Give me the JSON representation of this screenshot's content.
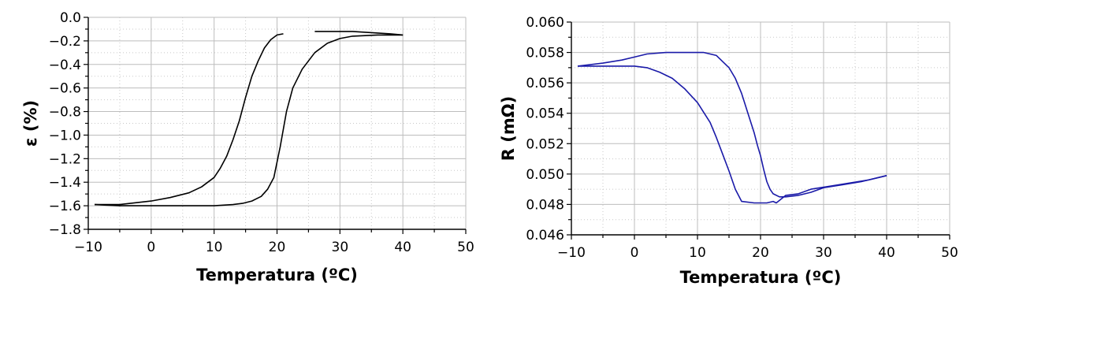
{
  "chart_data": [
    {
      "type": "line",
      "title": "",
      "xlabel": "Temperatura (ºC)",
      "ylabel": "ε (%)",
      "xlim": [
        -10,
        50
      ],
      "ylim": [
        -1.8,
        0.0
      ],
      "xticks": [
        -10,
        0,
        10,
        20,
        30,
        40,
        50
      ],
      "xtick_labels": [
        "−10",
        "0",
        "10",
        "20",
        "30",
        "40",
        "50"
      ],
      "yticks": [
        0.0,
        -0.2,
        -0.4,
        -0.6,
        -0.8,
        -1.0,
        -1.2,
        -1.4,
        -1.6,
        -1.8
      ],
      "ytick_labels": [
        "0.0",
        "−0.2",
        "−0.4",
        "−0.6",
        "−0.8",
        "−1.0",
        "−1.2",
        "−1.4",
        "−1.6",
        "−1.8"
      ],
      "grid": true,
      "color": "#000000",
      "series": [
        {
          "x": [
            -9,
            -5,
            0,
            5,
            10,
            13,
            14.5,
            16,
            17.5,
            18.5,
            19.5,
            20.5,
            21.5,
            22.5,
            24,
            26,
            28,
            30,
            32,
            36,
            40
          ],
          "y": [
            -1.59,
            -1.6,
            -1.6,
            -1.6,
            -1.6,
            -1.59,
            -1.58,
            -1.56,
            -1.52,
            -1.46,
            -1.36,
            -1.1,
            -0.8,
            -0.6,
            -0.44,
            -0.3,
            -0.22,
            -0.18,
            -0.16,
            -0.15,
            -0.15
          ]
        },
        {
          "x": [
            40,
            38,
            35,
            32,
            29,
            26
          ],
          "y": [
            -0.15,
            -0.14,
            -0.13,
            -0.12,
            -0.12,
            -0.12
          ]
        },
        {
          "x": [
            -9,
            -5,
            0,
            3,
            6,
            8,
            10,
            11,
            12,
            13,
            14,
            15,
            16,
            17,
            18,
            19,
            20,
            21
          ],
          "y": [
            -1.59,
            -1.59,
            -1.56,
            -1.53,
            -1.49,
            -1.44,
            -1.36,
            -1.28,
            -1.18,
            -1.04,
            -0.88,
            -0.68,
            -0.5,
            -0.37,
            -0.26,
            -0.19,
            -0.15,
            -0.14
          ]
        }
      ]
    },
    {
      "type": "line",
      "title": "",
      "xlabel": "Temperatura (ºC)",
      "ylabel": "R (mΩ)",
      "xlim": [
        -10,
        50
      ],
      "ylim": [
        0.046,
        0.06
      ],
      "xticks": [
        -10,
        0,
        10,
        20,
        30,
        40,
        50
      ],
      "xtick_labels": [
        "−10",
        "0",
        "10",
        "20",
        "30",
        "40",
        "50"
      ],
      "yticks": [
        0.046,
        0.048,
        0.05,
        0.052,
        0.054,
        0.056,
        0.058,
        0.06
      ],
      "ytick_labels": [
        "0.046",
        "0.048",
        "0.050",
        "0.052",
        "0.054",
        "0.056",
        "0.058",
        "0.060"
      ],
      "grid": true,
      "color": "#1a1aa8",
      "series": [
        {
          "x": [
            -9,
            -5,
            -2,
            0,
            2,
            5,
            8,
            11,
            13,
            15,
            16,
            17,
            18,
            19,
            19.5,
            20,
            20.5,
            21,
            21.5,
            22,
            23,
            24,
            26,
            28,
            30,
            33,
            36,
            38,
            40
          ],
          "y": [
            0.0571,
            0.0573,
            0.0575,
            0.0577,
            0.0579,
            0.058,
            0.058,
            0.058,
            0.0578,
            0.057,
            0.0563,
            0.0553,
            0.054,
            0.0527,
            0.0519,
            0.0512,
            0.0503,
            0.0495,
            0.049,
            0.0487,
            0.0485,
            0.0485,
            0.0486,
            0.0488,
            0.0491,
            0.0493,
            0.0495,
            0.0497,
            0.0499
          ]
        },
        {
          "x": [
            40,
            37,
            34,
            31,
            28,
            26,
            24,
            22.5,
            22,
            21,
            19,
            17,
            16,
            15,
            14,
            13,
            12,
            10,
            8,
            6,
            4,
            2,
            0,
            -3,
            -6,
            -9
          ],
          "y": [
            0.0499,
            0.0496,
            0.0494,
            0.0492,
            0.049,
            0.0487,
            0.0486,
            0.0481,
            0.0482,
            0.0481,
            0.0481,
            0.0482,
            0.049,
            0.0502,
            0.0513,
            0.0524,
            0.0534,
            0.0547,
            0.0556,
            0.0563,
            0.0567,
            0.057,
            0.0571,
            0.0571,
            0.0571,
            0.0571
          ]
        }
      ]
    }
  ]
}
